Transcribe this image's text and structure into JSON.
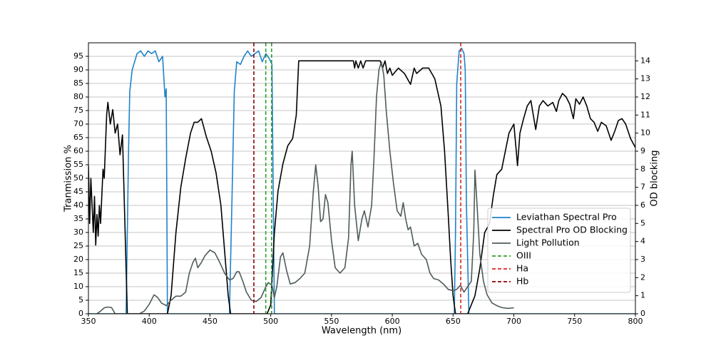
{
  "chart_data": {
    "type": "line",
    "xlabel": "Wavelength (nm)",
    "ylabel": "Tranmission %",
    "y2label": "OD blocking",
    "xlim": [
      350,
      800
    ],
    "xticks": [
      350,
      400,
      450,
      500,
      550,
      600,
      650,
      700,
      750,
      800
    ],
    "ylim": [
      0,
      100
    ],
    "yticks": [
      0,
      5,
      10,
      15,
      20,
      25,
      30,
      35,
      40,
      45,
      50,
      55,
      60,
      65,
      70,
      75,
      80,
      85,
      90,
      95
    ],
    "y2lim": [
      0,
      15
    ],
    "y2ticks": [
      0,
      1,
      2,
      3,
      4,
      5,
      6,
      7,
      8,
      9,
      10,
      11,
      12,
      13,
      14
    ],
    "grid": true,
    "legend": "lower right",
    "series": [
      {
        "name": "Leviathan Spectral Pro",
        "color": "#1f83c8",
        "x": [
          350,
          381,
          383,
          384,
          386,
          390,
          393,
          396,
          399,
          402,
          405,
          408,
          411,
          413,
          414,
          415,
          417,
          466,
          468,
          470,
          472,
          475,
          478,
          481,
          484,
          487,
          490,
          493,
          496,
          499,
          501,
          503,
          651,
          652,
          653,
          655,
          657,
          659,
          660,
          661,
          663,
          800
        ],
        "values": [
          0,
          0,
          60,
          82,
          90,
          96,
          97,
          95,
          97,
          96,
          97,
          93,
          95,
          80,
          83,
          0,
          0,
          0,
          40,
          82,
          93,
          92,
          95,
          97,
          95,
          96,
          97,
          93,
          96,
          94,
          92,
          0,
          0,
          30,
          85,
          97,
          98,
          96,
          90,
          40,
          0,
          0
        ]
      },
      {
        "name": "Spectral Pro OD Blocking",
        "color": "#000000",
        "axis": "y2",
        "x": [
          350,
          351,
          352,
          353,
          354,
          355,
          356,
          357,
          358,
          359,
          360,
          362,
          363,
          365,
          366,
          368,
          370,
          372,
          374,
          376,
          378,
          380,
          382,
          415,
          418,
          422,
          426,
          430,
          434,
          437,
          440,
          443,
          447,
          451,
          455,
          459,
          462,
          465,
          467,
          497,
          500,
          503,
          506,
          510,
          514,
          518,
          521,
          523,
          568,
          569,
          570,
          572,
          574,
          576,
          578,
          590,
          592,
          594,
          596,
          598,
          600,
          605,
          610,
          615,
          618,
          620,
          625,
          630,
          635,
          640,
          643,
          646,
          648,
          650,
          652,
          662,
          668,
          672,
          676,
          680,
          683,
          686,
          690,
          693,
          696,
          700,
          702,
          703,
          705,
          708,
          711,
          714,
          716,
          718,
          721,
          724,
          728,
          732,
          735,
          737,
          740,
          743,
          746,
          749,
          751,
          754,
          757,
          760,
          763,
          766,
          769,
          772,
          776,
          780,
          783,
          786,
          789,
          792,
          796,
          800
        ],
        "values": [
          8.2,
          5,
          7.5,
          6,
          4.5,
          6.5,
          3.8,
          5.5,
          4.3,
          6,
          5,
          8,
          7.5,
          11,
          11.7,
          10.5,
          11.3,
          10,
          10.5,
          8.8,
          9.9,
          5,
          0,
          0,
          1,
          4.5,
          7,
          8.6,
          10,
          10.6,
          10.6,
          10.8,
          9.8,
          9,
          7.8,
          6,
          3.5,
          1,
          0,
          0,
          0.5,
          4.5,
          6.8,
          8.3,
          9.3,
          9.7,
          11,
          14,
          14,
          13.6,
          14,
          13.6,
          14,
          13.6,
          14,
          14,
          13.6,
          14,
          13.3,
          13.6,
          13.2,
          13.6,
          13.3,
          12.7,
          13.6,
          13.3,
          13.6,
          13.6,
          13,
          11.5,
          9,
          5.5,
          3,
          1,
          0,
          0,
          1,
          2.5,
          4.5,
          5,
          6.5,
          7.7,
          8,
          9,
          10,
          10.5,
          9,
          8.2,
          10,
          10.8,
          11.5,
          11.8,
          11,
          10.2,
          11.5,
          11.8,
          11.5,
          11.7,
          11.2,
          11.8,
          12.2,
          12,
          11.6,
          10.8,
          11.9,
          11.6,
          12,
          11.5,
          10.8,
          10.6,
          10.1,
          10.6,
          10.4,
          9.6,
          10.1,
          10.7,
          10.8,
          10.5,
          9.7,
          9.2
        ]
      },
      {
        "name": "Light Pollution",
        "color": "#4f5b5b",
        "x": [
          357,
          360,
          363,
          366,
          369,
          372,
          392,
          396,
          400,
          404,
          407,
          410,
          414,
          418,
          422,
          426,
          430,
          433,
          436,
          438,
          440,
          443,
          446,
          450,
          454,
          458,
          462,
          466,
          469,
          472,
          474,
          477,
          480,
          484,
          488,
          492,
          496,
          498,
          501,
          503,
          505,
          508,
          510,
          513,
          516,
          520,
          524,
          528,
          532,
          535,
          537,
          539,
          541,
          543,
          545,
          547,
          550,
          553,
          557,
          561,
          564,
          566,
          567,
          569,
          572,
          575,
          577,
          580,
          583,
          585,
          587,
          589,
          591,
          593,
          595,
          598,
          601,
          604,
          607,
          609,
          611,
          613,
          615,
          618,
          621,
          624,
          628,
          631,
          634,
          638,
          642,
          646,
          650,
          653,
          656,
          659,
          662,
          665,
          667,
          668,
          670,
          672,
          675,
          678,
          682,
          686,
          690,
          695,
          700
        ],
        "values": [
          0,
          1,
          2.2,
          2.5,
          2.3,
          0,
          0,
          1,
          3.5,
          7,
          6,
          4,
          3,
          5,
          6.5,
          6.5,
          8,
          15,
          19,
          20.5,
          17,
          19,
          21.5,
          23.5,
          22.5,
          19,
          15,
          12.5,
          13,
          15.5,
          15.5,
          12,
          8,
          5,
          4.5,
          6,
          10,
          11.5,
          10.5,
          6,
          10,
          21,
          22.5,
          16,
          11,
          11.5,
          13,
          15,
          25,
          45,
          55,
          47,
          34,
          35,
          44,
          41,
          27,
          17,
          15,
          17,
          28,
          55,
          60,
          40,
          27,
          35,
          38,
          32,
          40,
          58,
          80,
          90,
          93,
          88,
          75,
          60,
          48,
          38,
          36,
          41,
          35,
          31,
          32,
          25,
          26,
          22,
          20,
          15,
          13,
          12.5,
          11,
          9,
          8.5,
          9,
          10.5,
          8,
          10,
          12,
          30,
          53,
          38,
          22,
          12,
          7,
          4,
          3,
          2.3,
          2,
          2.2
        ]
      }
    ],
    "reference_lines": [
      {
        "name": "OIII",
        "color": "#2ca02c",
        "x": [
          495.9,
          500.7
        ]
      },
      {
        "name": "Ha",
        "color": "#d62728",
        "x": [
          656.3
        ]
      },
      {
        "name": "Hb",
        "color": "#8b0000",
        "x": [
          486.1
        ]
      }
    ]
  }
}
